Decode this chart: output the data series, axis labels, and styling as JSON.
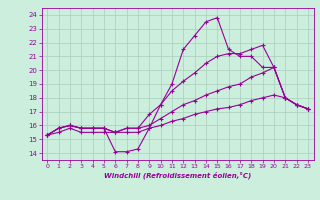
{
  "xlabel": "Windchill (Refroidissement éolien,°C)",
  "bg_color": "#cceedd",
  "line_color": "#990099",
  "grid_color": "#aaccbb",
  "xlim": [
    -0.5,
    23.5
  ],
  "ylim": [
    13.5,
    24.5
  ],
  "yticks": [
    14,
    15,
    16,
    17,
    18,
    19,
    20,
    21,
    22,
    23,
    24
  ],
  "xticks": [
    0,
    1,
    2,
    3,
    4,
    5,
    6,
    7,
    8,
    9,
    10,
    11,
    12,
    13,
    14,
    15,
    16,
    17,
    18,
    19,
    20,
    21,
    22,
    23
  ],
  "series": [
    [
      15.3,
      15.8,
      16.0,
      15.8,
      15.8,
      15.8,
      14.1,
      14.1,
      14.3,
      15.8,
      17.5,
      19.0,
      21.5,
      22.5,
      23.5,
      23.8,
      21.5,
      21.0,
      21.0,
      20.2,
      20.2,
      18.0,
      17.5,
      17.2
    ],
    [
      15.3,
      15.8,
      16.0,
      15.8,
      15.8,
      15.8,
      15.5,
      15.8,
      15.8,
      16.8,
      17.5,
      18.5,
      19.2,
      19.8,
      20.5,
      21.0,
      21.2,
      21.2,
      21.5,
      21.8,
      20.2,
      18.0,
      17.5,
      17.2
    ],
    [
      15.3,
      15.8,
      16.0,
      15.8,
      15.8,
      15.8,
      15.5,
      15.8,
      15.8,
      16.0,
      16.5,
      17.0,
      17.5,
      17.8,
      18.2,
      18.5,
      18.8,
      19.0,
      19.5,
      19.8,
      20.2,
      18.0,
      17.5,
      17.2
    ],
    [
      15.3,
      15.5,
      15.8,
      15.5,
      15.5,
      15.5,
      15.5,
      15.5,
      15.5,
      15.8,
      16.0,
      16.3,
      16.5,
      16.8,
      17.0,
      17.2,
      17.3,
      17.5,
      17.8,
      18.0,
      18.2,
      18.0,
      17.5,
      17.2
    ]
  ]
}
